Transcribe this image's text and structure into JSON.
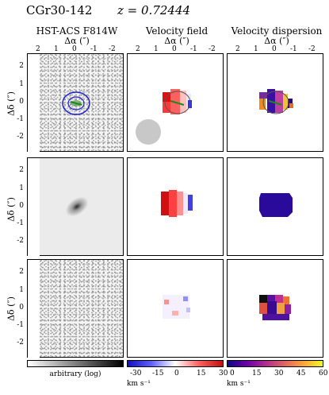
{
  "header": {
    "object_id": "CGr30-142",
    "redshift": "z = 0.72444"
  },
  "columns": [
    {
      "title": "HST-ACS F814W"
    },
    {
      "title": "Velocity field"
    },
    {
      "title": "Velocity dispersion"
    }
  ],
  "x_axis_label": "Δα (″)",
  "y_axis_label": "Δδ (″)",
  "x_ticks": [
    "2",
    "1",
    "0",
    "-1",
    "-2"
  ],
  "y_ticks": [
    "2",
    "1",
    "0",
    "-1",
    "-2"
  ],
  "colorbars": {
    "flux": {
      "label": "arbitrary (log)"
    },
    "velocity": {
      "ticks": [
        "-30",
        "-15",
        "0",
        "15",
        "30"
      ],
      "unit": "km s⁻¹",
      "range": [
        -30,
        30
      ]
    },
    "dispersion": {
      "ticks": [
        "0",
        "15",
        "30",
        "45",
        "60"
      ],
      "unit": "km s⁻¹",
      "range": [
        0,
        60
      ]
    }
  },
  "colors": {
    "velocity_map": "seismic",
    "dispersion_map": "plasma",
    "contour": "#1f1fd0",
    "psf": "#c8c8c8"
  }
}
